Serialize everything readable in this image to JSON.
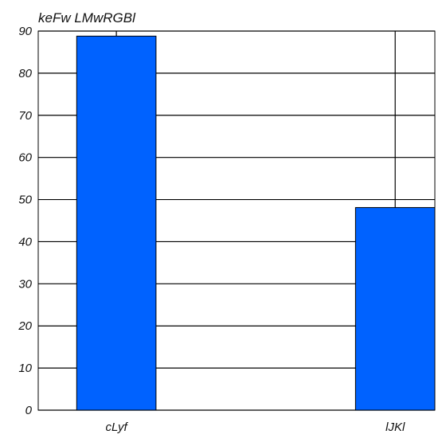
{
  "chart_data": {
    "type": "bar",
    "title": "keFw   LMwRGBl",
    "categories": [
      "cLyf",
      "lJKl"
    ],
    "values": [
      88.8,
      48.1
    ],
    "ylim": [
      0,
      90
    ],
    "yticks": [
      0,
      10,
      20,
      30,
      40,
      50,
      60,
      70,
      80,
      90
    ],
    "grid": true,
    "bar_color": "#0062ff",
    "xlabel": "",
    "ylabel": ""
  }
}
